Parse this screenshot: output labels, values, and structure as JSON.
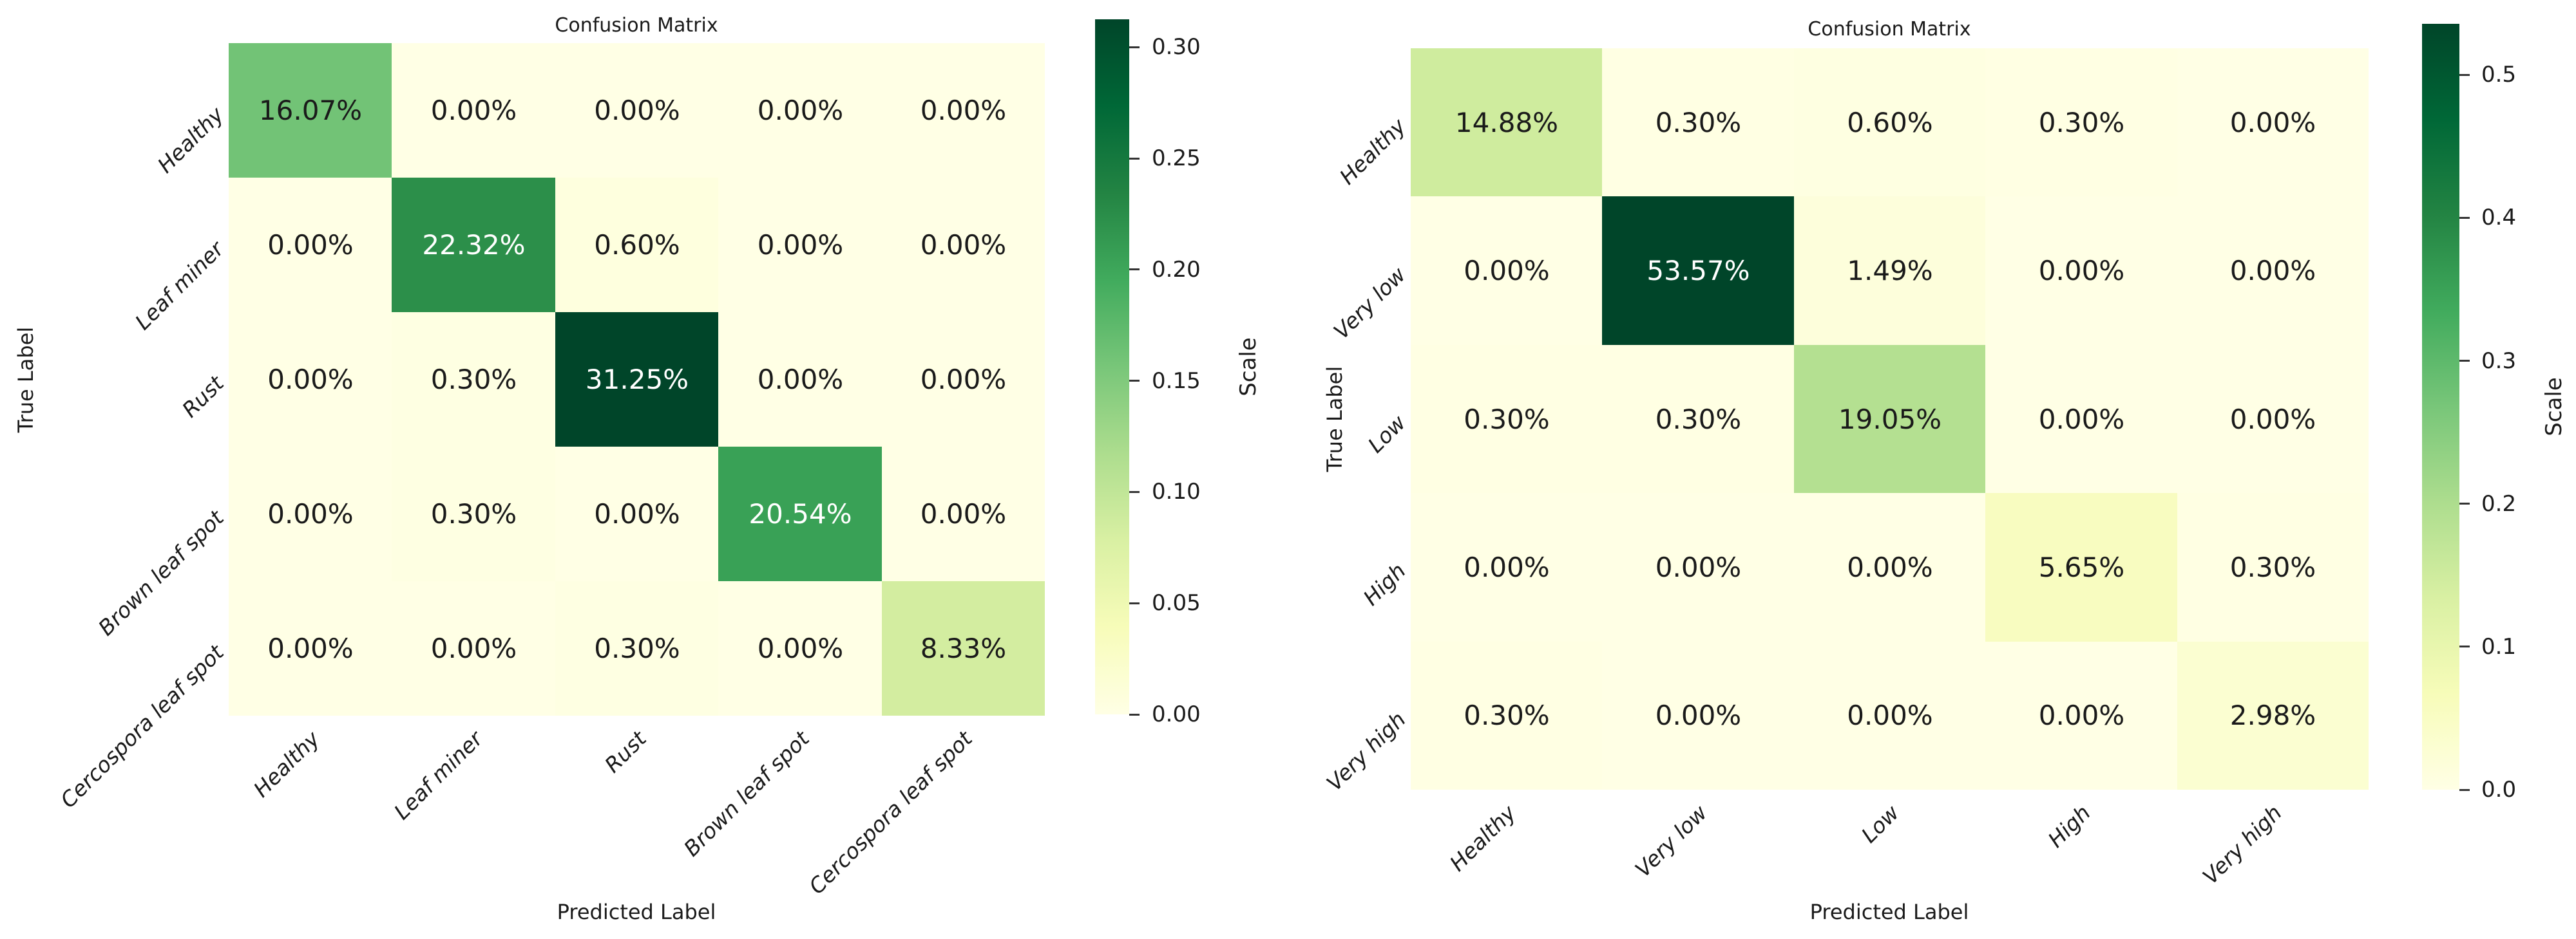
{
  "figure": {
    "background": "#ffffff",
    "text_color": "#1a1a1a",
    "annotation_light_text": "#ffffff",
    "colormap_name": "YlGn",
    "colormap_anchors": [
      "#ffffe5",
      "#f7fcb9",
      "#d9f0a3",
      "#addd8e",
      "#78c679",
      "#41ab5d",
      "#238443",
      "#006837",
      "#004529"
    ]
  },
  "chart_data": [
    {
      "type": "heatmap",
      "title": "Confusion Matrix",
      "xlabel": "Predicted Label",
      "ylabel": "True Label",
      "x_categories": [
        "Healthy",
        "Leaf miner",
        "Rust",
        "Brown leaf spot",
        "Cercospora leaf spot"
      ],
      "y_categories": [
        "Healthy",
        "Leaf miner",
        "Rust",
        "Brown leaf spot",
        "Cercospora leaf spot"
      ],
      "values_percent": [
        [
          16.07,
          0.0,
          0.0,
          0.0,
          0.0
        ],
        [
          0.0,
          22.32,
          0.6,
          0.0,
          0.0
        ],
        [
          0.0,
          0.3,
          31.25,
          0.0,
          0.0
        ],
        [
          0.0,
          0.3,
          0.0,
          20.54,
          0.0
        ],
        [
          0.0,
          0.0,
          0.3,
          0.0,
          8.33
        ]
      ],
      "cell_label_suffix": "%",
      "scale_min": 0.0,
      "scale_max": 0.3125,
      "colorbar": {
        "label": "Scale",
        "tick_labels": [
          "0.30",
          "0.25",
          "0.20",
          "0.15",
          "0.10",
          "0.05",
          "0.00"
        ],
        "tick_values": [
          0.3,
          0.25,
          0.2,
          0.15,
          0.1,
          0.05,
          0.0
        ]
      }
    },
    {
      "type": "heatmap",
      "title": "Confusion Matrix",
      "xlabel": "Predicted Label",
      "ylabel": "True Label",
      "x_categories": [
        "Healthy",
        "Very low",
        "Low",
        "High",
        "Very high"
      ],
      "y_categories": [
        "Healthy",
        "Very low",
        "Low",
        "High",
        "Very high"
      ],
      "values_percent": [
        [
          14.88,
          0.3,
          0.6,
          0.3,
          0.0
        ],
        [
          0.0,
          53.57,
          1.49,
          0.0,
          0.0
        ],
        [
          0.3,
          0.3,
          19.05,
          0.0,
          0.0
        ],
        [
          0.0,
          0.0,
          0.0,
          5.65,
          0.3
        ],
        [
          0.3,
          0.0,
          0.0,
          0.0,
          2.98
        ]
      ],
      "cell_label_suffix": "%",
      "scale_min": 0.0,
      "scale_max": 0.5357,
      "colorbar": {
        "label": "Scale",
        "tick_labels": [
          "0.5",
          "0.4",
          "0.3",
          "0.2",
          "0.1",
          "0.0"
        ],
        "tick_values": [
          0.5,
          0.4,
          0.3,
          0.2,
          0.1,
          0.0
        ]
      }
    }
  ]
}
